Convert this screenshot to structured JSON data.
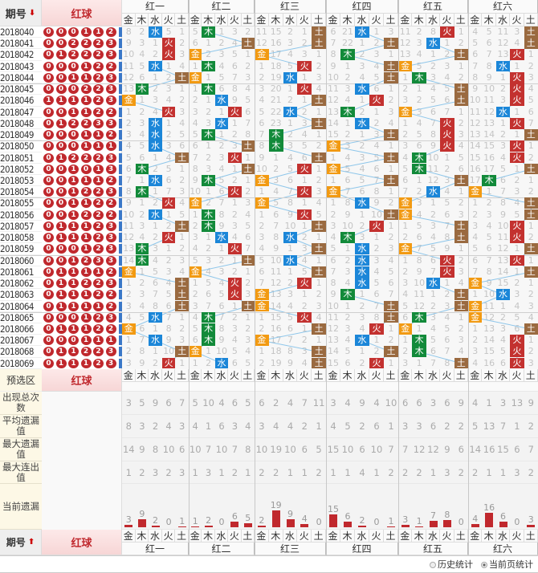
{
  "header": {
    "issue_label": "期号",
    "sort_desc_icon": "arrow-down-icon",
    "sort_asc_icon": "arrow-up-icon",
    "red_label": "红球",
    "groups": [
      "红一",
      "红二",
      "红三",
      "红四",
      "红五",
      "红六"
    ],
    "elements": [
      "金",
      "木",
      "水",
      "火",
      "土"
    ]
  },
  "element_colors": {
    "金": "#f29a12",
    "木": "#128a3a",
    "水": "#1b86d8",
    "火": "#c3312f",
    "土": "#9a6a40"
  },
  "line_color": "#8ec6ea",
  "rows": [
    {
      "issue": "2018040",
      "balls": "0 0 0 1 1 2",
      "cells": [
        "8 2 水 5 1",
        "5 木 1 3 2",
        "11 15 2 1 土",
        "6 21 水 1 3",
        "11 2 8 火 1",
        "4 5 11 3 土"
      ]
    },
    {
      "issue": "2018041",
      "balls": "0 0 2 2 2 3",
      "cells": [
        "9 3 1 火 2",
        "6 1 2 4 土",
        "12 16 3 2 土",
        "7 22 1 2 土",
        "12 3 水 1 2",
        "5 6 12 4 土"
      ]
    },
    {
      "issue": "2018042",
      "balls": "0 1 2 2 2 3",
      "cells": [
        "10 4 2 火 3",
        "金 2 3 5 1",
        "金 17 4 3 1",
        "8 木 2 3 1",
        "13 4 1 2 土",
        "6 7 13 火 1"
      ]
    },
    {
      "issue": "2018043",
      "balls": "0 0 0 1 2 2",
      "cells": [
        "11 5 水 1 4",
        "1 木 4 6 2",
        "1 18 5 火 2",
        "9 1 3 4 土",
        "金 5 2 3 1",
        "7 8 水 1 2"
      ]
    },
    {
      "issue": "2018044",
      "balls": "0 0 1 1 2 3",
      "cells": [
        "12 6 1 2 土",
        "金 1 5 7 3",
        "2 19 水 1 3",
        "10 2 4 5 土",
        "1 木 3 4 2",
        "8 9 1 火 3"
      ]
    },
    {
      "issue": "2018045",
      "balls": "0 0 0 2 2 3",
      "cells": [
        "13 木 2 3 1",
        "1 木 6 8 4",
        "3 20 1 火 4",
        "11 3 水 6 1",
        "2 1 4 5 土",
        "9 10 2 火 4"
      ]
    },
    {
      "issue": "2018046",
      "balls": "1 1 1 1 2 3",
      "cells": [
        "金 1 3 4 2",
        "2 1 水 9 5",
        "4 21 2 1 土",
        "12 4 1 火 2",
        "3 2 5 6 土",
        "10 11 3 火 5"
      ]
    },
    {
      "issue": "2018047",
      "balls": "0 0 1 1 2 2",
      "cells": [
        "1 2 4 火 3",
        "3 2 1 火 6",
        "5 22 水 2 1",
        "13 木 2 1 3",
        "金 3 6 7 1",
        "11 12 水 1 6"
      ]
    },
    {
      "issue": "2018048",
      "balls": "0 1 2 2 3 3",
      "cells": [
        "2 3 水 1 4",
        "4 3 水 1 7",
        "6 23 1 3 土",
        "14 1 水 2 4",
        "1 4 7 火 2",
        "12 13 1 火 7"
      ]
    },
    {
      "issue": "2018049",
      "balls": "0 0 0 1 1 2",
      "cells": [
        "3 4 水 2 5",
        "5 木 1 2 8",
        "7 木 2 4 1",
        "15 2 1 3 土",
        "2 5 8 火 3",
        "13 14 2 1 土"
      ]
    },
    {
      "issue": "2018050",
      "balls": "0 0 0 1 1 1",
      "cells": [
        "4 5 水 3 6",
        "6 1 2 3 土",
        "8 木 3 5 2",
        "金 3 2 4 1",
        "3 6 9 火 4",
        "14 15 3 火 1"
      ]
    },
    {
      "issue": "2018051",
      "balls": "0 1 2 2 2 3",
      "cells": [
        "5 6 1 4 土",
        "7 2 3 火 1",
        "9 1 4 6 土",
        "1 4 3 5 土",
        "4 木 10 1 5",
        "15 16 4 火 2"
      ]
    },
    {
      "issue": "2018052",
      "balls": "0 0 1 0 1 3",
      "cells": [
        "6 木 2 5 1",
        "8 3 4 1 土",
        "10 2 5 火 1",
        "金 5 4 6 1",
        "5 木 11 2 6",
        "16 17 5 1 土"
      ]
    },
    {
      "issue": "2018053",
      "balls": "0 0 1 1 1 2",
      "cells": [
        "7 1 水 6 2",
        "9 木 5 2 1",
        "金 3 6 1 2",
        "1 6 5 7 土",
        "6 1 12 3 土",
        "17 木 6 2 1"
      ]
    },
    {
      "issue": "2018054",
      "balls": "0 0 1 2 2 3",
      "cells": [
        "8 木 1 7 3",
        "10 1 6 火 2",
        "1 4 7 火 3",
        "金 7 6 8 1",
        "7 2 水 4 1",
        "金 1 7 3 2"
      ]
    },
    {
      "issue": "2018055",
      "balls": "0 0 1 1 2 2",
      "cells": [
        "9 1 2 火 4",
        "金 2 7 1 3",
        "金 5 8 1 4",
        "1 8 水 9 2",
        "金 3 1 5 2",
        "1 2 8 4 土"
      ]
    },
    {
      "issue": "2018056",
      "balls": "0 0 1 2 2 2",
      "cells": [
        "10 2 水 1 5",
        "1 木 8 2 4",
        "1 6 9 火 5",
        "2 9 1 10 土",
        "金 4 2 6 3",
        "2 3 9 5 土"
      ]
    },
    {
      "issue": "2018057",
      "balls": "0 1 1 1 2 3",
      "cells": [
        "11 3 1 2 土",
        "2 木 9 3 5",
        "2 7 10 1 土",
        "3 10 2 火 1",
        "1 5 3 7 土",
        "3 4 10 火 1"
      ]
    },
    {
      "issue": "2018058",
      "balls": "0 1 1 1 2 3",
      "cells": [
        "12 4 2 火 1",
        "3 1 水 4 6",
        "3 8 水 2 1",
        "4 木 3 1 2",
        "2 6 4 8 土",
        "4 5 11 火 2"
      ]
    },
    {
      "issue": "2018059",
      "balls": "0 0 0 1 2 3",
      "cells": [
        "13 木 3 1 2",
        "4 2 1 火 7",
        "4 9 1 3 土",
        "5 1 水 2 3",
        "金 7 5 9 1",
        "5 6 12 1 土"
      ]
    },
    {
      "issue": "2018060",
      "balls": "0 0 1 2 3 3",
      "cells": [
        "14 木 4 2 3",
        "5 3 2 1 土",
        "5 10 水 4 1",
        "6 2 水 3 4",
        "1 8 6 火 2",
        "6 7 13 火 1"
      ]
    },
    {
      "issue": "2018061",
      "balls": "0 1 1 1 1 2",
      "cells": [
        "金 1 5 3 4",
        "金 4 3 2 1",
        "6 11 1 5 土",
        "7 3 水 4 5",
        "2 9 7 火 3",
        "7 8 14 1 土"
      ]
    },
    {
      "issue": "2018062",
      "balls": "0 1 1 2 2 3",
      "cells": [
        "1 2 6 4 土",
        "1 5 4 火 2",
        "7 12 2 火 1",
        "8 4 水 5 6",
        "3 10 水 1 4",
        "金 9 15 2 1"
      ]
    },
    {
      "issue": "2018063",
      "balls": "0 1 1 1 2 2",
      "cells": [
        "2 3 7 5 土",
        "2 6 5 火 3",
        "金 13 3 1 2",
        "9 木 1 6 7",
        "4 11 1 2 土",
        "1 10 水 3 2"
      ]
    },
    {
      "issue": "2018064",
      "balls": "0 1 1 1 1 2",
      "cells": [
        "3 4 8 6 土",
        "3 7 6 1 土",
        "金 14 4 2 3",
        "10 1 2 7 土",
        "5 12 2 3 土",
        "金 11 1 4 3"
      ]
    },
    {
      "issue": "2018065",
      "balls": "0 0 0 1 2 3",
      "cells": [
        "4 5 水 7 1",
        "4 木 7 2 1",
        "1 15 5 火 4",
        "11 2 3 8 土",
        "6 木 3 4 1",
        "金 12 2 5 4"
      ]
    },
    {
      "issue": "2018066",
      "balls": "0 1 1 1 2 2",
      "cells": [
        "金 6 1 8 2",
        "5 木 8 3 2",
        "2 16 6 1 土",
        "12 3 4 火 1",
        "金 1 4 5 2",
        "1 13 3 6 土"
      ]
    },
    {
      "issue": "2018067",
      "balls": "0 0 0 1 1 1",
      "cells": [
        "1 7 水 9 3",
        "6 木 9 4 3",
        "金 17 7 2 1",
        "13 4 水 1 2",
        "1 木 5 6 3",
        "2 14 4 火 1"
      ]
    },
    {
      "issue": "2018068",
      "balls": "0 1 1 2 2 3",
      "cells": [
        "2 8 1 10 土",
        "金 1 10 5 4",
        "1 18 8 3 土",
        "14 5 1 2 土",
        "2 木 6 7 4",
        "3 15 5 火 2"
      ]
    },
    {
      "issue": "2018069",
      "balls": "0 1 1 1 2 3",
      "cells": [
        "3 9 2 火 1",
        "1 2 水 6 5",
        "2 19 9 4 土",
        "15 6 2 火 1",
        "3 1 7 8 土",
        "4 16 6 火 3"
      ]
    }
  ],
  "preselect_label": "预选区",
  "stats": [
    {
      "label": "出现总次数",
      "values": [
        3,
        5,
        9,
        6,
        7,
        5,
        10,
        4,
        6,
        5,
        6,
        2,
        4,
        7,
        11,
        3,
        4,
        9,
        4,
        10,
        6,
        6,
        3,
        6,
        9,
        4,
        1,
        3,
        13,
        9
      ]
    },
    {
      "label": "平均遗漏值",
      "values": [
        8,
        3,
        2,
        4,
        3,
        4,
        1,
        6,
        3,
        4,
        3,
        4,
        4,
        2,
        1,
        4,
        5,
        2,
        6,
        1,
        3,
        3,
        6,
        2,
        2,
        5,
        13,
        7,
        1,
        2
      ]
    },
    {
      "label": "最大遗漏值",
      "values": [
        14,
        9,
        8,
        10,
        6,
        10,
        7,
        10,
        7,
        8,
        10,
        19,
        10,
        6,
        5,
        15,
        10,
        6,
        10,
        7,
        7,
        12,
        12,
        9,
        6,
        14,
        16,
        15,
        6,
        7
      ]
    },
    {
      "label": "最大连出值",
      "values": [
        1,
        2,
        3,
        2,
        3,
        1,
        3,
        1,
        2,
        1,
        2,
        2,
        1,
        1,
        2,
        1,
        1,
        4,
        1,
        2,
        2,
        2,
        1,
        3,
        2,
        2,
        1,
        1,
        3,
        2
      ]
    }
  ],
  "current_omission": {
    "label": "当前遗漏",
    "values": [
      3,
      9,
      2,
      0,
      1,
      1,
      2,
      0,
      6,
      5,
      2,
      19,
      9,
      4,
      0,
      15,
      6,
      2,
      0,
      1,
      3,
      1,
      7,
      8,
      0,
      4,
      16,
      6,
      0,
      3
    ]
  },
  "footer": {
    "history_label": "历史统计",
    "current_page_label": "当前页统计",
    "selected": "当前页统计"
  }
}
